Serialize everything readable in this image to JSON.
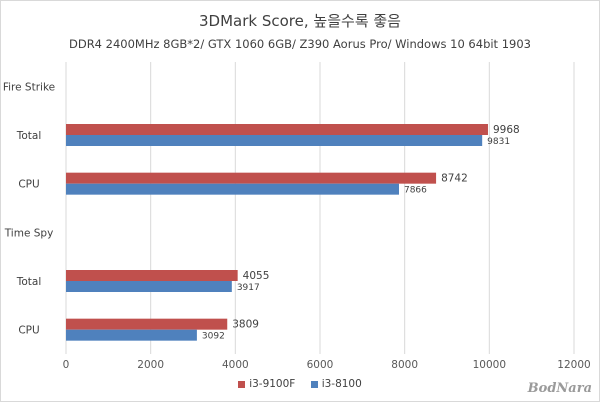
{
  "chart_data": {
    "type": "bar",
    "orientation": "horizontal",
    "title": "3DMark Score, 높을수록 좋음",
    "subtitle": "DDR4 2400MHz 8GB*2/ GTX 1060 6GB/ Z390 Aorus Pro/ Windows 10 64bit 1903",
    "categories": [
      "Fire Strike",
      "Total",
      "CPU",
      "Time Spy",
      "Total",
      "CPU"
    ],
    "series": [
      {
        "name": "i3-9100F",
        "color": "#c0504d",
        "values": [
          null,
          9968,
          8742,
          null,
          4055,
          3809
        ]
      },
      {
        "name": "i3-8100",
        "color": "#4f81bd",
        "values": [
          null,
          9831,
          7866,
          null,
          3917,
          3092
        ]
      }
    ],
    "xlim": [
      0,
      12000
    ],
    "xticks": [
      0,
      2000,
      4000,
      6000,
      8000,
      10000,
      12000
    ],
    "grid": "vertical",
    "legend_position": "bottom"
  },
  "watermark": "BodNara"
}
